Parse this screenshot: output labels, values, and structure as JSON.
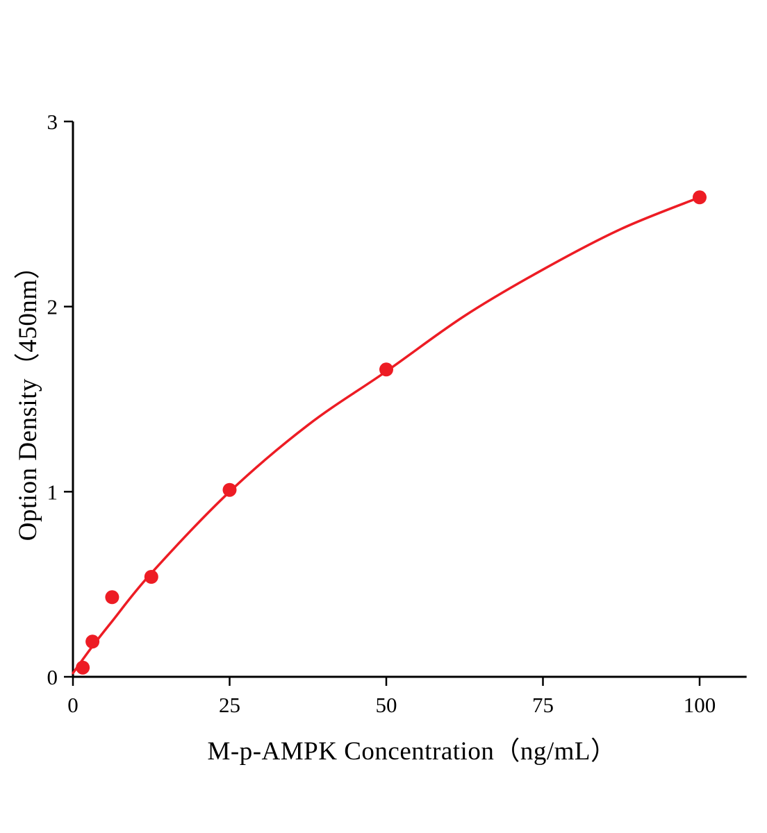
{
  "chart_data": {
    "type": "scatter",
    "title": "",
    "xlabel": "M-p-AMPK Concentration（ng/mL）",
    "ylabel": "Option Density（450nm）",
    "x": [
      1.56,
      3.12,
      6.25,
      12.5,
      25,
      50,
      100
    ],
    "y": [
      0.05,
      0.19,
      0.43,
      0.54,
      1.01,
      1.66,
      2.59
    ],
    "fit_curve": {
      "x": [
        0,
        3,
        6.25,
        12.5,
        25,
        37.5,
        50,
        62.5,
        75,
        87.5,
        100
      ],
      "y": [
        0.02,
        0.16,
        0.3,
        0.56,
        1.0,
        1.36,
        1.65,
        1.95,
        2.2,
        2.42,
        2.59
      ]
    },
    "xlim": [
      0,
      107.5
    ],
    "ylim": [
      0,
      3
    ],
    "x_ticks": [
      "0",
      "25",
      "50",
      "75",
      "100"
    ],
    "x_tick_values": [
      0,
      25,
      50,
      75,
      100
    ],
    "y_ticks": [
      "0",
      "1",
      "2",
      "3"
    ],
    "y_tick_values": [
      0,
      1,
      2,
      3
    ],
    "grid": false,
    "legend": "none",
    "marker_color": "#ed1c24",
    "line_color": "#ed1c24",
    "axis_color": "#000000"
  }
}
